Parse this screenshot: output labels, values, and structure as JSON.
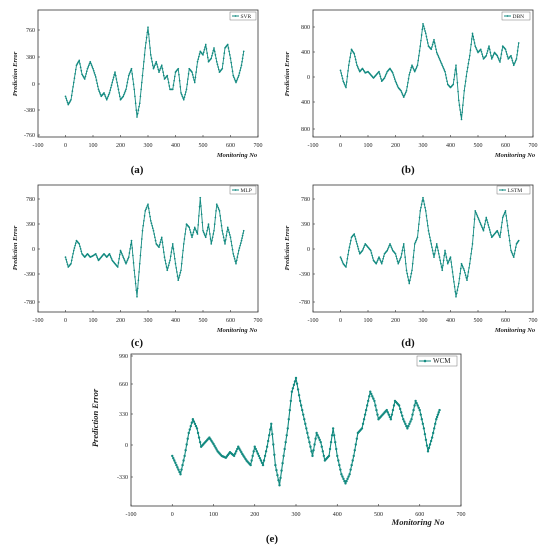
{
  "figure": {
    "panels": [
      {
        "tag": "(a)",
        "legend": "SVR",
        "xlabel": "Monitoring No",
        "ylabel": "Prediction Error",
        "xticks": [
          "-100",
          "0",
          "100",
          "200",
          "300",
          "400",
          "500",
          "600",
          "700"
        ],
        "yticks": [
          "760",
          "380",
          "0",
          "-380",
          "-760"
        ]
      },
      {
        "tag": "(b)",
        "legend": "DBN",
        "xlabel": "Monitoring No",
        "ylabel": "Prediction Error",
        "xticks": [
          "-100",
          "0",
          "100",
          "200",
          "300",
          "400",
          "500",
          "600",
          "700"
        ],
        "yticks": [
          "800",
          "400",
          "0",
          "400",
          "800"
        ]
      },
      {
        "tag": "(c)",
        "legend": "MLP",
        "xlabel": "Monitoring No",
        "ylabel": "Prediction Error",
        "xticks": [
          "-100",
          "0",
          "100",
          "200",
          "300",
          "400",
          "500",
          "600",
          "700"
        ],
        "yticks": [
          "780",
          "390",
          "0",
          "-390",
          "-780"
        ]
      },
      {
        "tag": "(d)",
        "legend": "LSTM",
        "xlabel": "Monitoring No",
        "ylabel": "Prediction Error",
        "xticks": [
          "-100",
          "0",
          "100",
          "200",
          "300",
          "400",
          "500",
          "600",
          "700"
        ],
        "yticks": [
          "780",
          "390",
          "0",
          "-390",
          "-780"
        ]
      },
      {
        "tag": "(e)",
        "legend": "WCM",
        "xlabel": "Monitoring No",
        "ylabel": "Prediction Error",
        "xticks": [
          "-100",
          "0",
          "100",
          "200",
          "300",
          "400",
          "500",
          "600",
          "700"
        ],
        "yticks": [
          "990",
          "660",
          "330",
          "0",
          "-330"
        ]
      }
    ]
  },
  "colors": {
    "series": "#138a80",
    "axis": "#333333"
  },
  "chart_data": [
    {
      "type": "line",
      "legend": "top-right",
      "xlabel": "Monitoring No",
      "ylabel": "Prediction Error",
      "xlim": [
        -100,
        700
      ],
      "ylim": [
        -800,
        950
      ],
      "series": [
        {
          "name": "SVR",
          "x": [
            0,
            10,
            20,
            30,
            40,
            50,
            60,
            70,
            80,
            90,
            100,
            110,
            120,
            130,
            140,
            150,
            160,
            170,
            180,
            190,
            200,
            210,
            220,
            230,
            240,
            250,
            260,
            270,
            280,
            290,
            300,
            310,
            320,
            330,
            340,
            350,
            360,
            370,
            380,
            390,
            400,
            410,
            420,
            430,
            440,
            450,
            460,
            470,
            480,
            490,
            500,
            510,
            520,
            530,
            540,
            550,
            560,
            570,
            580,
            590,
            600,
            610,
            620,
            630,
            640,
            648
          ],
          "y": [
            -200,
            -320,
            -250,
            0,
            250,
            320,
            120,
            50,
            200,
            300,
            200,
            80,
            -100,
            -200,
            -150,
            -250,
            -150,
            0,
            150,
            -50,
            -250,
            -200,
            -100,
            100,
            200,
            -100,
            -500,
            -300,
            100,
            500,
            800,
            400,
            200,
            300,
            150,
            250,
            50,
            100,
            -100,
            -100,
            150,
            200,
            -150,
            -250,
            -100,
            200,
            150,
            0,
            300,
            450,
            400,
            550,
            300,
            350,
            500,
            300,
            150,
            200,
            500,
            550,
            350,
            100,
            0,
            100,
            250,
            450
          ]
        }
      ]
    },
    {
      "type": "line",
      "legend": "top-right",
      "xlabel": "Monitoring No",
      "ylabel": "Prediction Error",
      "xlim": [
        -100,
        700
      ],
      "ylim": [
        -850,
        950
      ],
      "series": [
        {
          "name": "DBN",
          "x": [
            0,
            10,
            20,
            30,
            40,
            50,
            60,
            70,
            80,
            90,
            100,
            110,
            120,
            130,
            140,
            150,
            160,
            170,
            180,
            190,
            200,
            210,
            220,
            230,
            240,
            250,
            260,
            270,
            280,
            290,
            300,
            310,
            320,
            330,
            340,
            350,
            360,
            370,
            380,
            390,
            400,
            410,
            420,
            430,
            440,
            450,
            460,
            470,
            480,
            490,
            500,
            510,
            520,
            530,
            540,
            550,
            560,
            570,
            580,
            590,
            600,
            610,
            620,
            630,
            640,
            648
          ],
          "y": [
            120,
            -50,
            -150,
            200,
            450,
            380,
            200,
            100,
            150,
            80,
            100,
            50,
            0,
            50,
            100,
            -50,
            0,
            100,
            150,
            80,
            -50,
            -150,
            -200,
            -300,
            -200,
            50,
            200,
            100,
            200,
            500,
            850,
            700,
            500,
            450,
            600,
            400,
            300,
            200,
            100,
            -100,
            -150,
            -100,
            200,
            -350,
            -650,
            -200,
            100,
            350,
            700,
            500,
            400,
            450,
            300,
            350,
            500,
            300,
            400,
            350,
            250,
            500,
            450,
            300,
            350,
            200,
            300,
            550
          ]
        }
      ]
    },
    {
      "type": "line",
      "legend": "top-right",
      "xlabel": "Monitoring No",
      "ylabel": "Prediction Error",
      "xlim": [
        -100,
        700
      ],
      "ylim": [
        -800,
        1000
      ],
      "series": [
        {
          "name": "MLP",
          "x": [
            0,
            10,
            20,
            30,
            40,
            50,
            60,
            70,
            80,
            90,
            100,
            110,
            120,
            130,
            140,
            150,
            160,
            170,
            180,
            190,
            200,
            210,
            220,
            230,
            240,
            250,
            260,
            270,
            280,
            290,
            300,
            310,
            320,
            330,
            340,
            350,
            360,
            370,
            380,
            390,
            400,
            410,
            420,
            430,
            440,
            450,
            460,
            470,
            480,
            490,
            500,
            510,
            520,
            530,
            540,
            550,
            560,
            570,
            580,
            590,
            600,
            610,
            620,
            630,
            640,
            648
          ],
          "y": [
            -100,
            -250,
            -200,
            0,
            150,
            100,
            -50,
            -100,
            -50,
            -100,
            -80,
            -50,
            -150,
            -100,
            -50,
            -100,
            -50,
            -150,
            -200,
            -250,
            0,
            -100,
            -200,
            -100,
            150,
            -300,
            -700,
            -200,
            300,
            600,
            700,
            450,
            300,
            100,
            50,
            200,
            -100,
            -300,
            -150,
            100,
            -200,
            -450,
            -300,
            100,
            400,
            350,
            200,
            350,
            250,
            800,
            300,
            200,
            400,
            100,
            300,
            700,
            600,
            300,
            100,
            350,
            200,
            -50,
            -200,
            0,
            150,
            300
          ]
        }
      ]
    },
    {
      "type": "line",
      "legend": "top-right",
      "xlabel": "Monitoring No",
      "ylabel": "Prediction Error",
      "xlim": [
        -100,
        700
      ],
      "ylim": [
        -800,
        1000
      ],
      "series": [
        {
          "name": "LSTM",
          "x": [
            0,
            10,
            20,
            30,
            40,
            50,
            60,
            70,
            80,
            90,
            100,
            110,
            120,
            130,
            140,
            150,
            160,
            170,
            180,
            190,
            200,
            210,
            220,
            230,
            240,
            250,
            260,
            270,
            280,
            290,
            300,
            310,
            320,
            330,
            340,
            350,
            360,
            370,
            380,
            390,
            400,
            410,
            420,
            430,
            440,
            450,
            460,
            470,
            480,
            490,
            500,
            510,
            520,
            530,
            540,
            550,
            560,
            570,
            580,
            590,
            600,
            610,
            620,
            630,
            640,
            648
          ],
          "y": [
            -100,
            -200,
            -250,
            0,
            200,
            250,
            100,
            -50,
            0,
            100,
            50,
            0,
            -150,
            -200,
            -100,
            -200,
            -50,
            0,
            100,
            0,
            -50,
            -200,
            -100,
            100,
            -300,
            -500,
            -300,
            100,
            200,
            600,
            800,
            600,
            300,
            100,
            -100,
            100,
            -100,
            -300,
            0,
            -200,
            -100,
            -400,
            -700,
            -500,
            -200,
            -300,
            -450,
            -200,
            100,
            600,
            500,
            400,
            300,
            500,
            350,
            200,
            250,
            300,
            200,
            500,
            600,
            300,
            0,
            -100,
            100,
            150
          ]
        }
      ]
    },
    {
      "type": "line",
      "legend": "top-right",
      "xlabel": "Monitoring No",
      "ylabel": "Prediction Error",
      "xlim": [
        -100,
        700
      ],
      "ylim": [
        -550,
        1000
      ],
      "series": [
        {
          "name": "WCM",
          "x": [
            0,
            10,
            20,
            30,
            40,
            50,
            60,
            70,
            80,
            90,
            100,
            110,
            120,
            130,
            140,
            150,
            160,
            170,
            180,
            190,
            200,
            210,
            220,
            230,
            240,
            250,
            260,
            270,
            280,
            290,
            300,
            310,
            320,
            330,
            340,
            350,
            360,
            370,
            380,
            390,
            400,
            410,
            420,
            430,
            440,
            450,
            460,
            470,
            480,
            490,
            500,
            510,
            520,
            530,
            540,
            550,
            560,
            570,
            580,
            590,
            600,
            610,
            620,
            630,
            640,
            648
          ],
          "y": [
            -100,
            -200,
            -300,
            -100,
            150,
            300,
            200,
            0,
            50,
            100,
            30,
            -50,
            -100,
            -120,
            -60,
            -100,
            0,
            -80,
            -150,
            -200,
            0,
            -100,
            -200,
            0,
            250,
            -200,
            -420,
            -100,
            200,
            600,
            750,
            500,
            300,
            100,
            -100,
            150,
            50,
            -150,
            -100,
            200,
            -100,
            -300,
            -400,
            -300,
            -100,
            150,
            200,
            400,
            600,
            500,
            300,
            350,
            400,
            300,
            500,
            450,
            300,
            200,
            300,
            500,
            400,
            200,
            -50,
            100,
            300,
            400
          ]
        }
      ]
    }
  ]
}
